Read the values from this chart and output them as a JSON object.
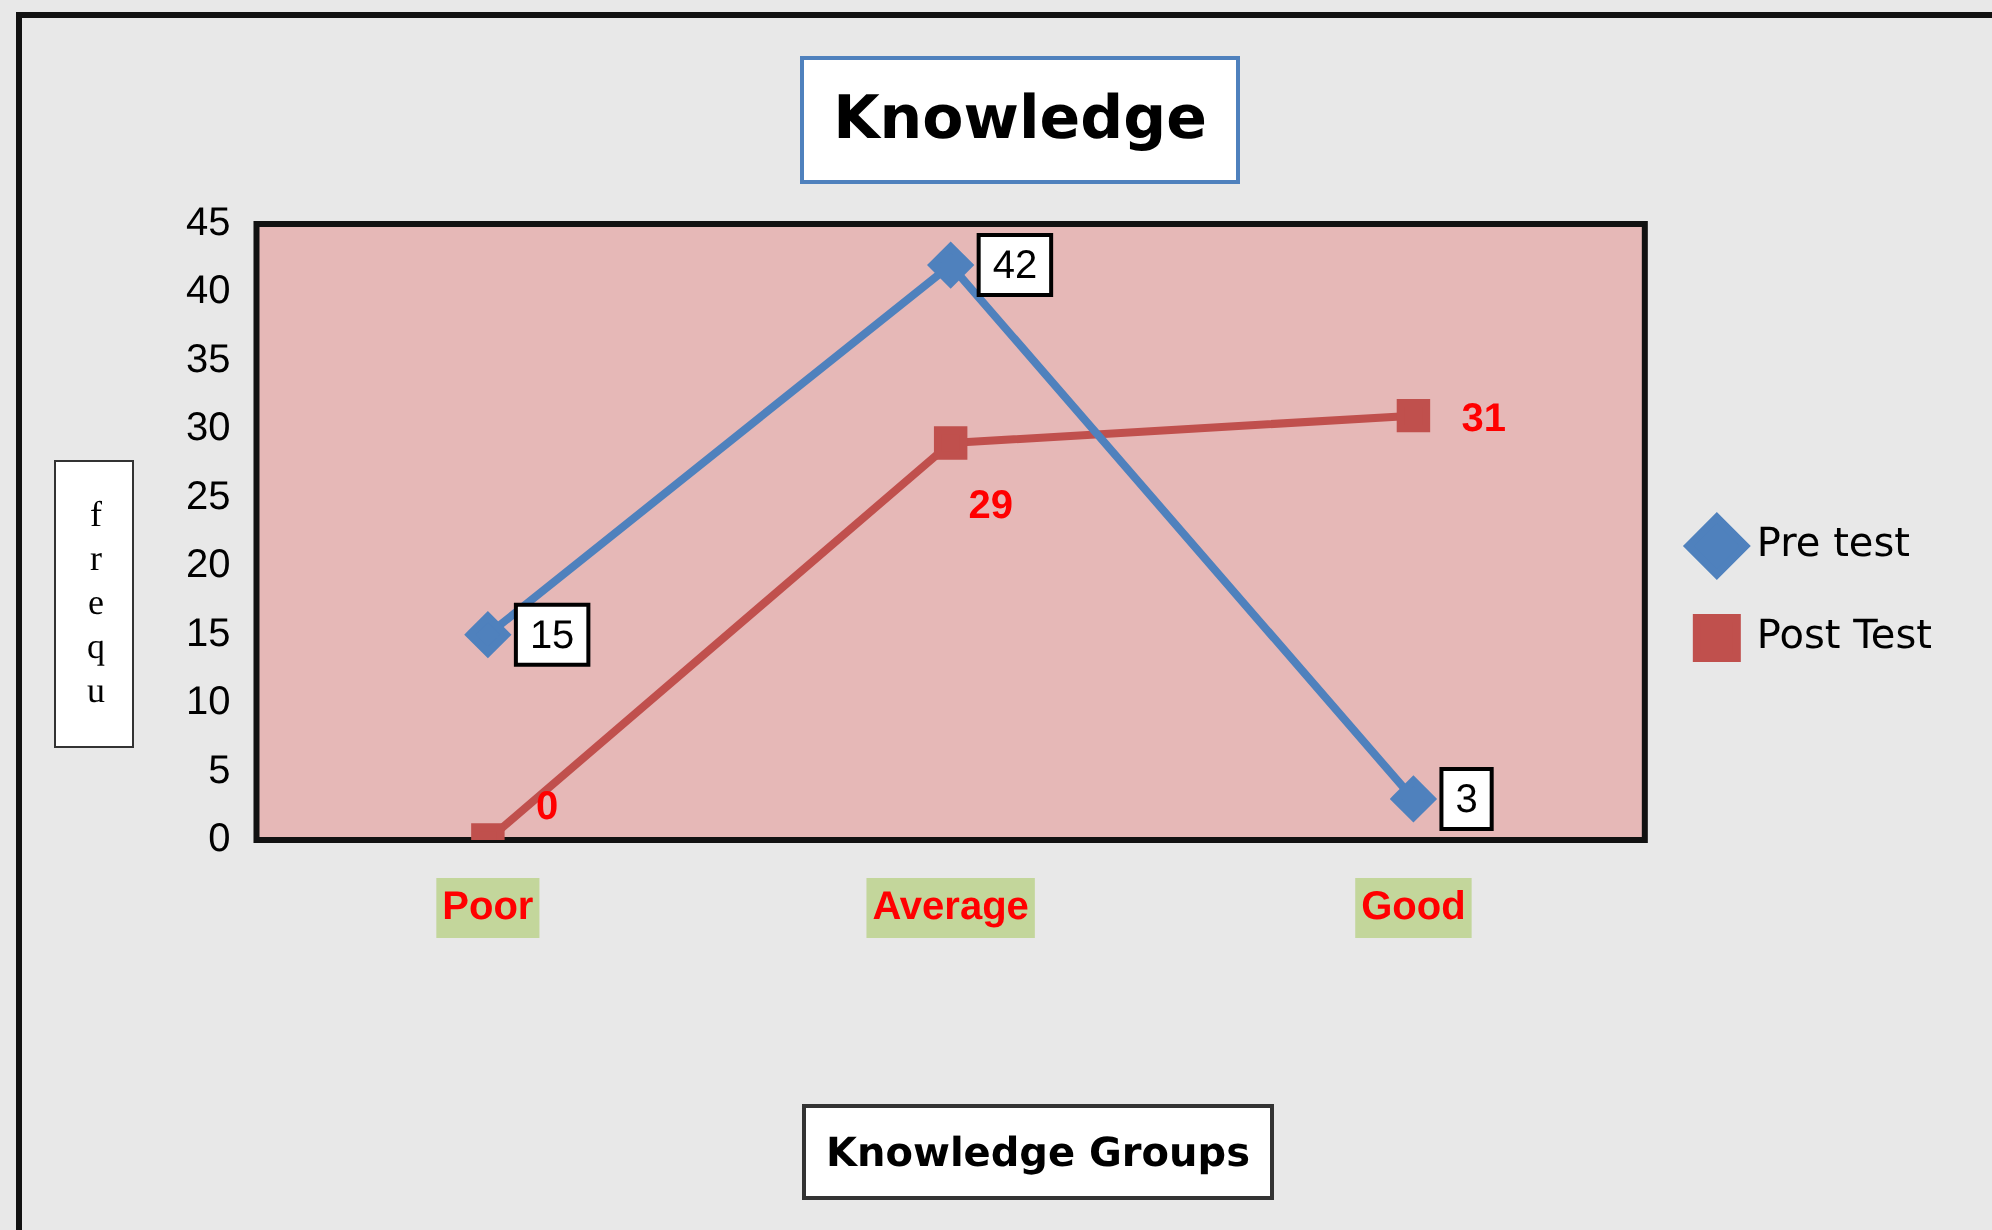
{
  "chart_data": {
    "type": "line",
    "title": "Knowledge",
    "xlabel": "Knowledge Groups",
    "ylabel": "frequ",
    "categories": [
      "Poor",
      "Average",
      "Good"
    ],
    "series": [
      {
        "name": "Pre test",
        "color": "#4f81bd",
        "values": [
          15,
          42,
          3
        ],
        "marker": "diamond"
      },
      {
        "name": "Post Test",
        "color": "#c0504d",
        "values": [
          0,
          29,
          31
        ],
        "marker": "square"
      }
    ],
    "ylim": [
      0,
      45
    ],
    "yticks": [
      0,
      5,
      10,
      15,
      20,
      25,
      30,
      35,
      40,
      45
    ],
    "grid": false,
    "legend": "right",
    "data_labels": true,
    "line_style": "solid"
  }
}
